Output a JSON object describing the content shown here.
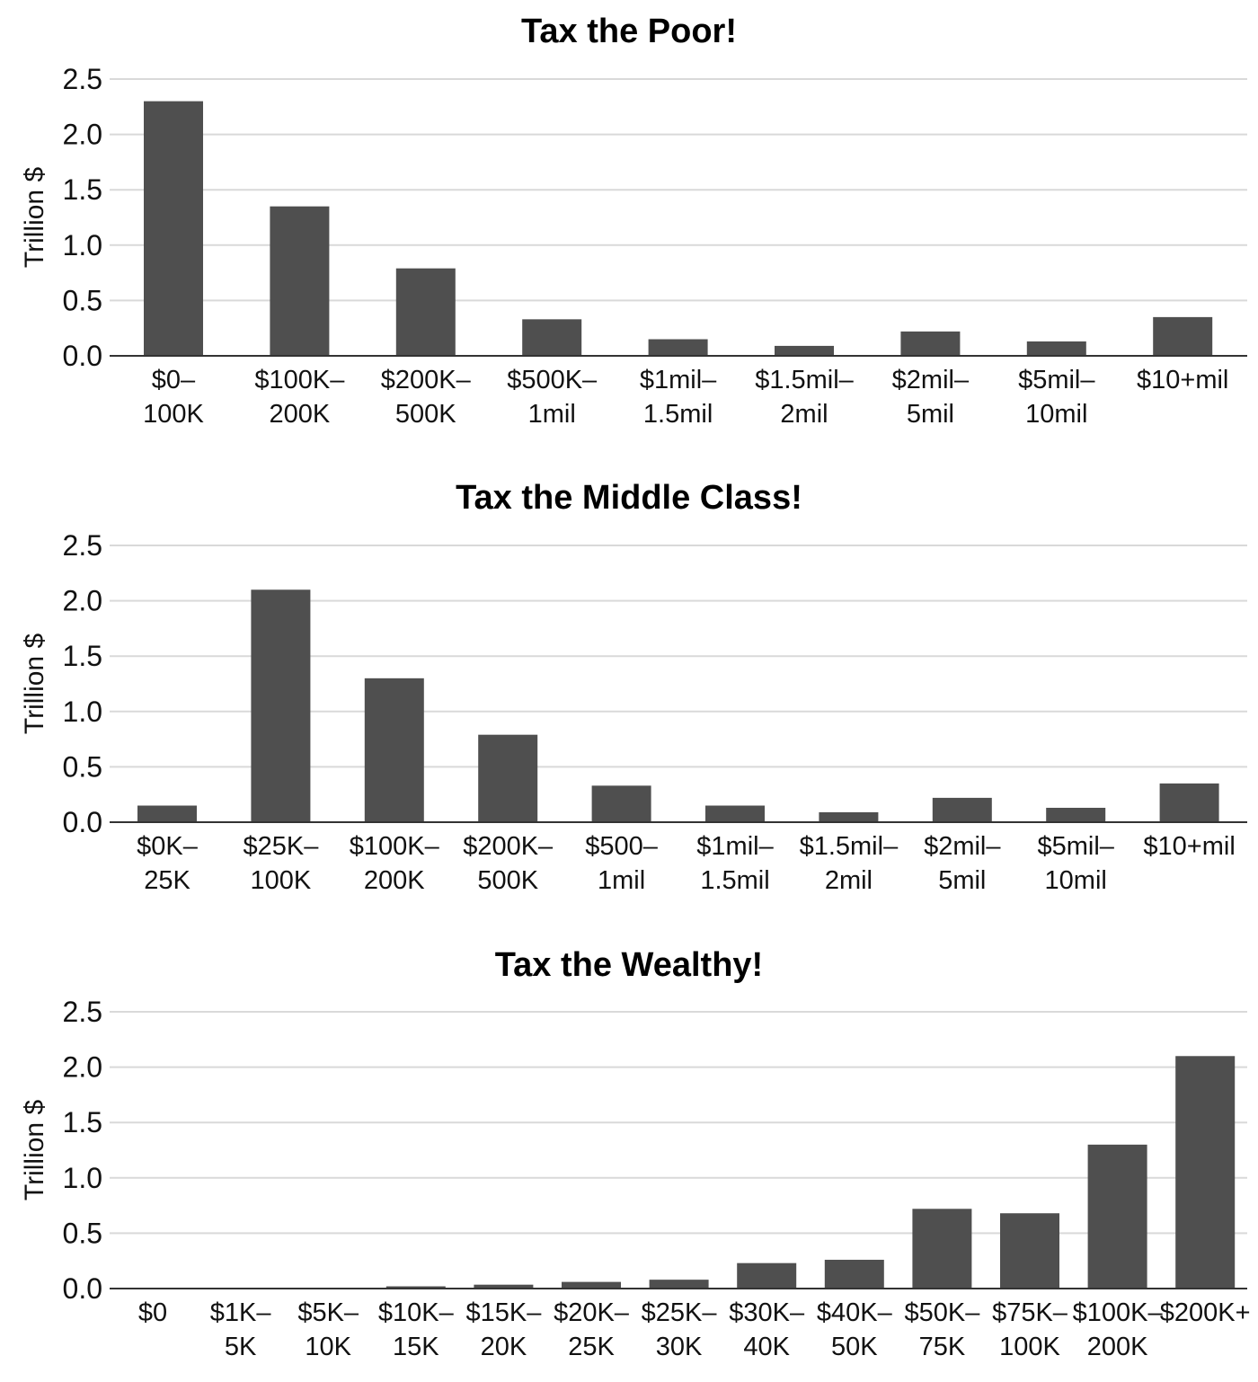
{
  "chart_data": [
    {
      "type": "bar",
      "title": "Tax the Poor!",
      "ylabel": "Trillion $",
      "ylim": [
        0,
        2.5
      ],
      "yticks": [
        "0.0",
        "0.5",
        "1.0",
        "1.5",
        "2.0",
        "2.5"
      ],
      "grid": true,
      "categories": [
        [
          "$0–",
          "100K"
        ],
        [
          "$100K–",
          "200K"
        ],
        [
          "$200K–",
          "500K"
        ],
        [
          "$500K–",
          "1mil"
        ],
        [
          "$1mil–",
          "1.5mil"
        ],
        [
          "$1.5mil–",
          "2mil"
        ],
        [
          "$2mil–",
          "5mil"
        ],
        [
          "$5mil–",
          "10mil"
        ],
        [
          "$10+mil"
        ]
      ],
      "values": [
        2.3,
        1.35,
        0.79,
        0.33,
        0.15,
        0.09,
        0.22,
        0.13,
        0.35
      ]
    },
    {
      "type": "bar",
      "title": "Tax the Middle Class!",
      "ylabel": "Trillion $",
      "ylim": [
        0,
        2.5
      ],
      "yticks": [
        "0.0",
        "0.5",
        "1.0",
        "1.5",
        "2.0",
        "2.5"
      ],
      "grid": true,
      "categories": [
        [
          "$0K–",
          "25K"
        ],
        [
          "$25K–",
          "100K"
        ],
        [
          "$100K–",
          "200K"
        ],
        [
          "$200K–",
          "500K"
        ],
        [
          "$500–",
          "1mil"
        ],
        [
          "$1mil–",
          "1.5mil"
        ],
        [
          "$1.5mil–",
          "2mil"
        ],
        [
          "$2mil–",
          "5mil"
        ],
        [
          "$5mil–",
          "10mil"
        ],
        [
          "$10+mil"
        ]
      ],
      "values": [
        0.15,
        2.1,
        1.3,
        0.79,
        0.33,
        0.15,
        0.09,
        0.22,
        0.13,
        0.35
      ]
    },
    {
      "type": "bar",
      "title": "Tax the Wealthy!",
      "ylabel": "Trillion $",
      "ylim": [
        0,
        2.5
      ],
      "yticks": [
        "0.0",
        "0.5",
        "1.0",
        "1.5",
        "2.0",
        "2.5"
      ],
      "grid": true,
      "categories": [
        [
          "$0"
        ],
        [
          "$1K–",
          "5K"
        ],
        [
          "$5K–",
          "10K"
        ],
        [
          "$10K–",
          "15K"
        ],
        [
          "$15K–",
          "20K"
        ],
        [
          "$20K–",
          "25K"
        ],
        [
          "$25K–",
          "30K"
        ],
        [
          "$30K–",
          "40K"
        ],
        [
          "$40K–",
          "50K"
        ],
        [
          "$50K–",
          "75K"
        ],
        [
          "$75K–",
          "100K"
        ],
        [
          "$100K–",
          "200K"
        ],
        [
          "$200K+"
        ]
      ],
      "values": [
        0.0,
        0.003,
        0.008,
        0.02,
        0.035,
        0.06,
        0.08,
        0.23,
        0.26,
        0.72,
        0.68,
        1.3,
        2.1
      ]
    }
  ]
}
